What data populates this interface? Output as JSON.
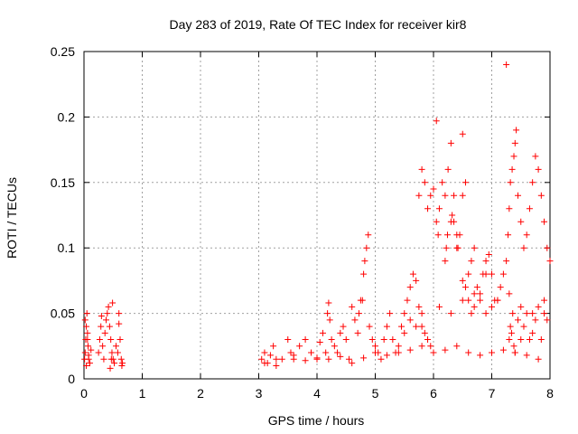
{
  "chart_data": {
    "type": "scatter",
    "title": "Day 283 of 2019, Rate Of TEC Index for receiver kir8",
    "xlabel": "GPS time / hours",
    "ylabel": "ROTI / TECUs",
    "xlim": [
      0,
      8
    ],
    "ylim": [
      0,
      0.25
    ],
    "grid": true,
    "marker": "+",
    "color": "#ff0000",
    "x_ticks": [
      0,
      1,
      2,
      3,
      4,
      5,
      6,
      7,
      8
    ],
    "x_tick_labels": [
      "0",
      "1",
      "2",
      "3",
      "4",
      "5",
      "6",
      "7",
      "8"
    ],
    "y_ticks": [
      0,
      0.05,
      0.1,
      0.15,
      0.2,
      0.25
    ],
    "y_tick_labels": [
      "0",
      "0.05",
      "0.1",
      "0.15",
      "0.2",
      "0.25"
    ],
    "series": [
      {
        "name": "ROTI",
        "x": [
          0.01,
          0.02,
          0.03,
          0.04,
          0.05,
          0.06,
          0.07,
          0.08,
          0.1,
          0.12,
          0.02,
          0.04,
          0.06,
          0.08,
          0.25,
          0.27,
          0.29,
          0.3,
          0.32,
          0.34,
          0.36,
          0.38,
          0.4,
          0.42,
          0.44,
          0.46,
          0.48,
          0.5,
          0.52,
          0.55,
          0.58,
          0.6,
          0.62,
          0.64,
          0.66,
          0.45,
          0.47,
          0.49,
          0.6,
          0.65,
          3.05,
          3.1,
          3.15,
          3.2,
          3.25,
          3.3,
          3.4,
          3.5,
          3.55,
          3.6,
          3.7,
          3.8,
          3.9,
          4.0,
          4.05,
          4.1,
          4.15,
          4.18,
          4.2,
          4.22,
          4.25,
          4.3,
          4.35,
          4.4,
          4.45,
          4.5,
          4.55,
          4.6,
          4.65,
          4.7,
          4.72,
          4.75,
          4.78,
          4.8,
          4.82,
          4.85,
          4.88,
          4.9,
          4.95,
          5.0,
          5.05,
          5.1,
          5.15,
          5.2,
          5.25,
          5.3,
          5.35,
          5.4,
          5.45,
          5.5,
          5.55,
          5.6,
          5.65,
          5.7,
          5.75,
          5.8,
          5.85,
          5.9,
          5.95,
          5.75,
          5.8,
          5.85,
          5.9,
          5.95,
          6.0,
          6.05,
          6.08,
          6.1,
          6.15,
          6.2,
          6.25,
          6.3,
          6.35,
          6.4,
          6.45,
          6.5,
          6.55,
          6.6,
          6.65,
          6.7,
          6.75,
          6.8,
          6.85,
          6.9,
          6.95,
          7.0,
          6.2,
          6.22,
          6.24,
          6.3,
          6.32,
          6.35,
          6.4,
          6.42,
          6.5,
          6.55,
          6.6,
          6.65,
          6.7,
          6.8,
          6.9,
          7.0,
          7.05,
          7.1,
          7.15,
          7.2,
          7.25,
          7.28,
          7.3,
          7.32,
          7.35,
          7.38,
          7.4,
          7.42,
          7.45,
          7.5,
          7.55,
          7.6,
          7.65,
          7.7,
          7.75,
          7.8,
          7.85,
          7.9,
          7.95,
          8.0,
          7.3,
          7.32,
          7.34,
          7.36,
          7.38,
          7.4,
          7.45,
          7.5,
          7.55,
          7.6,
          7.65,
          7.7,
          7.75,
          7.8,
          7.85,
          7.9,
          7.95,
          3.1,
          3.3,
          3.6,
          3.8,
          4.0,
          4.2,
          4.4,
          4.6,
          4.8,
          5.0,
          5.2,
          5.4,
          5.6,
          5.8,
          6.0,
          6.2,
          6.4,
          6.6,
          6.8,
          7.0,
          7.2,
          7.4,
          7.6,
          7.8,
          5.5,
          5.6,
          5.7,
          5.8,
          6.1,
          6.3,
          6.5,
          6.7,
          6.9,
          7.1,
          7.3,
          7.5,
          7.7,
          7.9,
          6.05,
          6.5,
          7.25
        ],
        "y": [
          0.015,
          0.02,
          0.03,
          0.04,
          0.05,
          0.035,
          0.025,
          0.018,
          0.012,
          0.022,
          0.045,
          0.01,
          0.03,
          0.015,
          0.02,
          0.03,
          0.04,
          0.048,
          0.025,
          0.015,
          0.035,
          0.045,
          0.05,
          0.055,
          0.04,
          0.03,
          0.02,
          0.015,
          0.012,
          0.025,
          0.02,
          0.05,
          0.03,
          0.015,
          0.012,
          0.008,
          0.015,
          0.058,
          0.042,
          0.01,
          0.015,
          0.02,
          0.012,
          0.018,
          0.025,
          0.01,
          0.015,
          0.03,
          0.02,
          0.015,
          0.025,
          0.03,
          0.02,
          0.015,
          0.028,
          0.035,
          0.02,
          0.05,
          0.058,
          0.045,
          0.03,
          0.025,
          0.02,
          0.035,
          0.04,
          0.03,
          0.015,
          0.055,
          0.045,
          0.035,
          0.05,
          0.06,
          0.06,
          0.08,
          0.09,
          0.1,
          0.11,
          0.04,
          0.03,
          0.025,
          0.02,
          0.015,
          0.03,
          0.04,
          0.05,
          0.03,
          0.02,
          0.025,
          0.04,
          0.05,
          0.06,
          0.07,
          0.08,
          0.075,
          0.055,
          0.04,
          0.035,
          0.03,
          0.025,
          0.14,
          0.16,
          0.15,
          0.13,
          0.14,
          0.145,
          0.12,
          0.11,
          0.13,
          0.15,
          0.14,
          0.16,
          0.18,
          0.12,
          0.1,
          0.11,
          0.14,
          0.15,
          0.08,
          0.09,
          0.1,
          0.07,
          0.065,
          0.08,
          0.09,
          0.095,
          0.08,
          0.09,
          0.1,
          0.11,
          0.12,
          0.125,
          0.14,
          0.11,
          0.1,
          0.075,
          0.07,
          0.06,
          0.05,
          0.065,
          0.06,
          0.08,
          0.055,
          0.06,
          0.06,
          0.07,
          0.08,
          0.09,
          0.11,
          0.13,
          0.15,
          0.16,
          0.17,
          0.18,
          0.19,
          0.14,
          0.12,
          0.1,
          0.11,
          0.13,
          0.15,
          0.17,
          0.16,
          0.14,
          0.12,
          0.1,
          0.09,
          0.03,
          0.04,
          0.035,
          0.05,
          0.025,
          0.02,
          0.045,
          0.03,
          0.04,
          0.05,
          0.03,
          0.035,
          0.045,
          0.055,
          0.03,
          0.05,
          0.045,
          0.012,
          0.015,
          0.018,
          0.014,
          0.016,
          0.015,
          0.017,
          0.012,
          0.016,
          0.02,
          0.018,
          0.02,
          0.022,
          0.025,
          0.02,
          0.022,
          0.025,
          0.02,
          0.018,
          0.02,
          0.022,
          0.02,
          0.018,
          0.015,
          0.035,
          0.045,
          0.04,
          0.05,
          0.055,
          0.05,
          0.06,
          0.055,
          0.05,
          0.06,
          0.065,
          0.055,
          0.05,
          0.06,
          0.197,
          0.187,
          0.24
        ]
      }
    ]
  }
}
